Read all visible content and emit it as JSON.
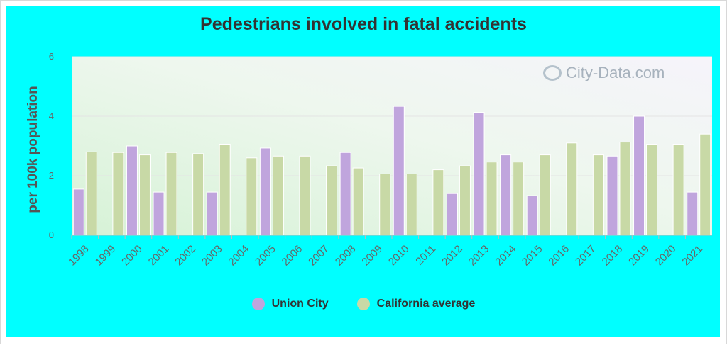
{
  "chart_data": {
    "type": "bar",
    "title": "Pedestrians involved in fatal accidents",
    "ylabel": "per 100k population",
    "xlabel": "",
    "ylim": [
      0,
      6
    ],
    "yticks": [
      "0",
      "2",
      "4",
      "6"
    ],
    "grid": true,
    "legend_position": "bottom",
    "categories": [
      "1998",
      "1999",
      "2000",
      "2001",
      "2002",
      "2003",
      "2004",
      "2005",
      "2006",
      "2007",
      "2008",
      "2009",
      "2010",
      "2011",
      "2012",
      "2013",
      "2014",
      "2015",
      "2016",
      "2017",
      "2018",
      "2019",
      "2020",
      "2021"
    ],
    "series": [
      {
        "name": "Union City",
        "color": "#c0a5dd",
        "values": [
          1.55,
          null,
          3.0,
          1.45,
          null,
          1.45,
          null,
          2.93,
          null,
          null,
          2.78,
          null,
          4.33,
          null,
          1.4,
          4.13,
          2.7,
          1.33,
          null,
          null,
          2.66,
          4.0,
          null,
          1.45
        ]
      },
      {
        "name": "California average",
        "color": "#c8d9a6",
        "values": [
          2.8,
          2.78,
          2.7,
          2.78,
          2.74,
          3.06,
          2.6,
          2.66,
          2.66,
          2.33,
          2.26,
          2.06,
          2.06,
          2.2,
          2.33,
          2.46,
          2.46,
          2.7,
          3.1,
          2.7,
          3.13,
          3.06,
          3.06,
          3.4
        ]
      }
    ]
  },
  "watermark": {
    "text": "City-Data.com",
    "icon": "magnifier-chart-icon"
  }
}
